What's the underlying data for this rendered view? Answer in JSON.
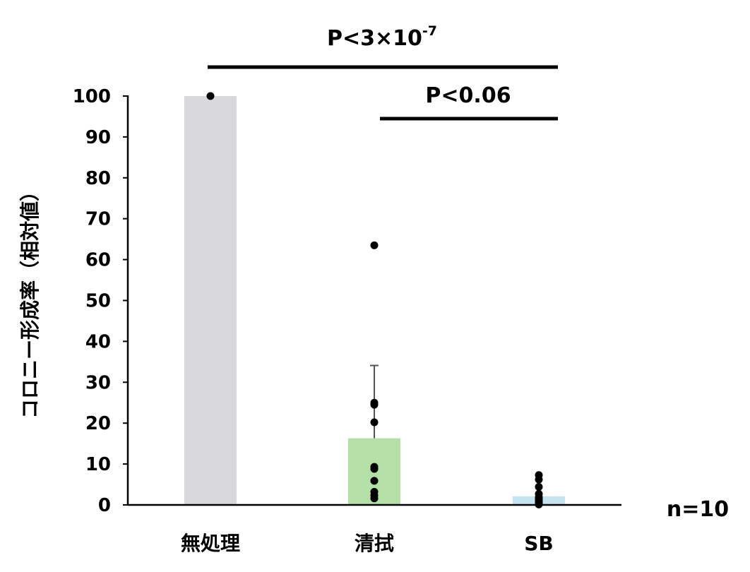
{
  "chart_data": {
    "type": "bar",
    "categories": [
      "無処理",
      "清拭",
      "SB"
    ],
    "values": [
      100,
      16.3,
      2.1
    ],
    "error_upper": [
      null,
      34.1,
      null
    ],
    "bar_colors": [
      "#d9d8dc",
      "#b4dfa7",
      "#c5e3f1"
    ],
    "points": [
      [
        100
      ],
      [
        63.5,
        25,
        24.5,
        20.2,
        9.3,
        8.8,
        5.9,
        3.2,
        2.3,
        1.6
      ],
      [
        7.3,
        6.2,
        4.4,
        2.7,
        1.9,
        1.4,
        1.0,
        0.6,
        0.3,
        0.1
      ]
    ],
    "ylabel": "コロニー形成率（相対値）",
    "ylim": [
      0,
      100
    ],
    "yticks": [
      "0",
      "10",
      "20",
      "30",
      "40",
      "50",
      "60",
      "70",
      "80",
      "90",
      "100"
    ],
    "ytick_values": [
      0,
      10,
      20,
      30,
      40,
      50,
      60,
      70,
      80,
      90,
      100
    ],
    "annotations": {
      "p1_text": "P<3×10",
      "p1_sup": "-7",
      "p2_text": "P<0.06",
      "n_text": "n=10"
    }
  }
}
